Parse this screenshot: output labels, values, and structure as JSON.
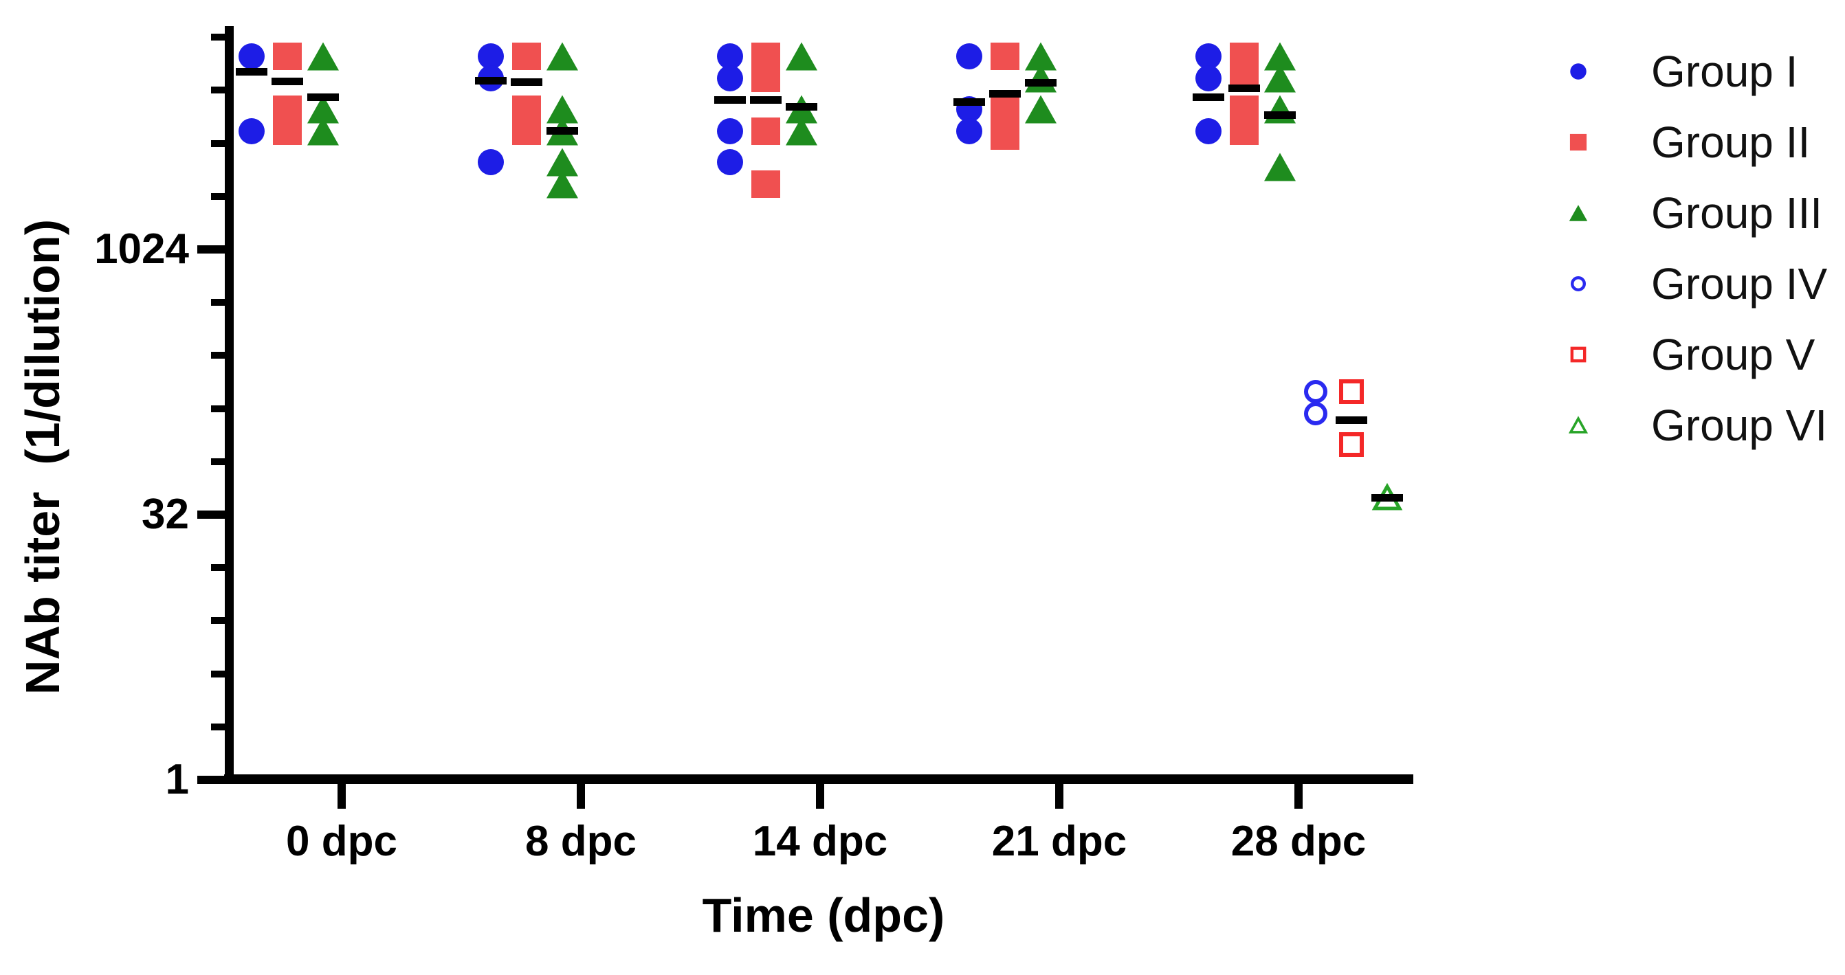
{
  "figure": {
    "background": "#ffffff",
    "axis_color": "#000000",
    "mean_bar_color": "#000000"
  },
  "y_axis": {
    "label": "NAb titer  (1/dilution)",
    "scale": "log2",
    "major_ticks": [
      {
        "value": 1,
        "label": "1"
      },
      {
        "value": 32,
        "label": "32"
      },
      {
        "value": 1024,
        "label": "1024"
      }
    ],
    "minor_ticks": [
      2,
      4,
      8,
      16,
      64,
      128,
      256,
      512,
      2048,
      4096,
      8192,
      16384
    ]
  },
  "x_axis": {
    "label": "Time (dpc)",
    "tick_labels": [
      "0 dpc",
      "8 dpc",
      "14 dpc",
      "21 dpc",
      "28 dpc"
    ]
  },
  "chart_data": {
    "type": "scatter",
    "title": "",
    "xlabel": "Time (dpc)",
    "ylabel": "NAb titer  (1/dilution)",
    "yscale": "log2",
    "ylim": [
      1,
      18800
    ],
    "grid": false,
    "legend_position": "right-outside",
    "categories": [
      "0 dpc",
      "8 dpc",
      "14 dpc",
      "21 dpc",
      "28 dpc"
    ],
    "groups": [
      {
        "label": "Group I",
        "marker": "circle",
        "filled": true,
        "color": "#1d1de6",
        "points": [
          [
            12800,
            4800
          ],
          [
            12800,
            9600,
            3200
          ],
          [
            12800,
            9600,
            4800,
            3200
          ],
          [
            12800,
            6400,
            4800
          ],
          [
            12800,
            9600,
            4800
          ]
        ],
        "means": [
          10400,
          9300,
          7200,
          7000,
          7500
        ]
      },
      {
        "label": "Group II",
        "marker": "square",
        "filled": true,
        "color": "#f05050",
        "points": [
          [
            12800,
            6400,
            4800
          ],
          [
            12800,
            6400,
            4800
          ],
          [
            12800,
            9600,
            4800,
            2400
          ],
          [
            12800,
            6400,
            4500
          ],
          [
            12800,
            9600,
            6400,
            4800
          ]
        ],
        "means": [
          9200,
          9100,
          7200,
          7800,
          8400
        ]
      },
      {
        "label": "Group III",
        "marker": "triangle",
        "filled": true,
        "color": "#1e8c1e",
        "points": [
          [
            12800,
            6400,
            4800
          ],
          [
            12800,
            6400,
            4800,
            3200,
            2400
          ],
          [
            12800,
            6400,
            4800
          ],
          [
            12800,
            9600,
            6400
          ],
          [
            12800,
            9600,
            6400,
            3000
          ]
        ],
        "means": [
          7500,
          4800,
          6600,
          9000,
          5900
        ]
      },
      {
        "label": "Group IV",
        "marker": "circle",
        "filled": false,
        "color": "#2a2af0",
        "points": [
          [],
          [],
          [],
          [],
          [
            160,
            120
          ]
        ],
        "means": [
          null,
          null,
          null,
          null,
          null
        ]
      },
      {
        "label": "Group V",
        "marker": "square",
        "filled": false,
        "color": "#f42828",
        "points": [
          [],
          [],
          [],
          [],
          [
            160,
            80
          ]
        ],
        "means": [
          null,
          null,
          null,
          null,
          110
        ]
      },
      {
        "label": "Group VI",
        "marker": "triangle",
        "filled": false,
        "color": "#28a428",
        "points": [
          [],
          [],
          [],
          [],
          [
            40
          ]
        ],
        "means": [
          null,
          null,
          null,
          null,
          40
        ]
      }
    ]
  }
}
